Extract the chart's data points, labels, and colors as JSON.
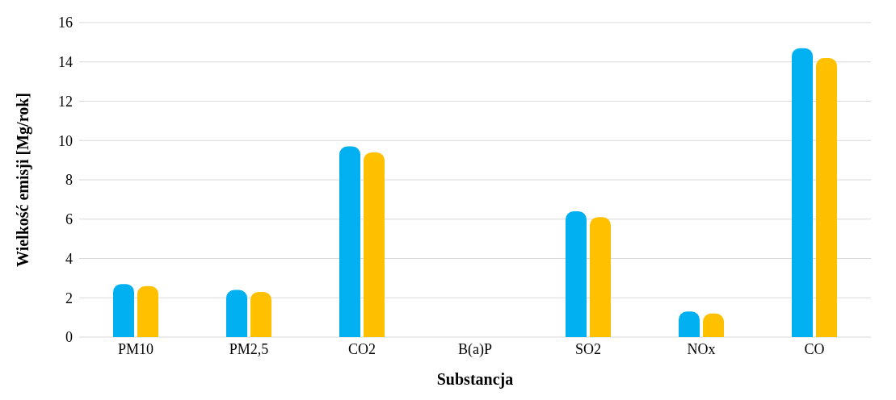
{
  "chart_data": {
    "type": "bar",
    "xlabel": "Substancja",
    "ylabel": "Wielkość emisji [Mg/rok]",
    "categories": [
      "PM10",
      "PM2,5",
      "CO2",
      "B(a)P",
      "SO2",
      "NOx",
      "CO"
    ],
    "series": [
      {
        "color": "#00b0f0",
        "values": [
          2.7,
          2.4,
          9.7,
          0,
          6.4,
          1.3,
          14.7
        ]
      },
      {
        "color": "#ffc000",
        "values": [
          2.6,
          2.3,
          9.4,
          0,
          6.1,
          1.2,
          14.2
        ]
      }
    ],
    "ylim": [
      0,
      16
    ],
    "yticks": [
      0,
      2,
      4,
      6,
      8,
      10,
      12,
      14,
      16
    ],
    "grid": "y",
    "legend": false
  }
}
